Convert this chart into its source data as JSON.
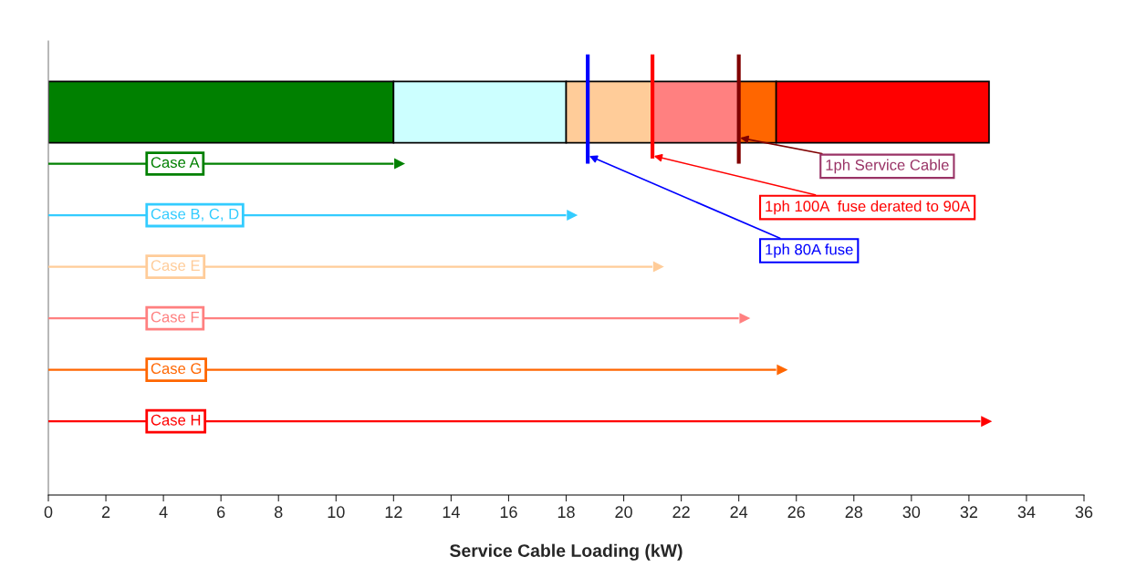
{
  "chart_data": {
    "type": "bar",
    "orientation": "horizontal",
    "stacked": true,
    "xlabel": "Service Cable Loading (kW)",
    "categories": [
      null,
      "Case A",
      "Case B, C, D",
      "Case E",
      "Case F",
      "Case G",
      "Case H"
    ],
    "series": [
      {
        "color": "#008000",
        "values": [
          12,
          null,
          null,
          null,
          null,
          null,
          null
        ]
      },
      {
        "color": "#ccffff",
        "values": [
          6,
          null,
          null,
          null,
          null,
          null,
          null
        ]
      },
      {
        "color": "#ffcc99",
        "values": [
          3,
          null,
          null,
          null,
          null,
          null,
          null
        ]
      },
      {
        "color": "#ff8080",
        "values": [
          3,
          null,
          null,
          null,
          null,
          null,
          null
        ]
      },
      {
        "color": "#ff6600",
        "values": [
          1.3,
          null,
          null,
          null,
          null,
          null,
          null
        ]
      },
      {
        "color": "#ff0000",
        "values": [
          7.4,
          null,
          null,
          null,
          null,
          null,
          null
        ]
      },
      {
        "colors": [
          null,
          "#008000",
          "#33ccff",
          "#ffcc99",
          "#ff8080",
          "#ff6600",
          "#ff0000"
        ],
        "values": [
          null,
          12,
          18,
          21,
          24,
          25.3,
          32.4
        ]
      }
    ],
    "ref_lines": [
      {
        "axis": "x",
        "value": 18.75,
        "label": "1ph 80A fuse",
        "color": "#0000ff"
      },
      {
        "axis": "x",
        "value": 21,
        "label": "1ph 100A  fuse derated to 90A",
        "color": "#ff0000"
      },
      {
        "axis": "x",
        "value": 24,
        "label": "1ph Service Cable",
        "color": "#800000"
      }
    ],
    "xlim": [
      0,
      36
    ],
    "xticks": [
      0,
      2,
      4,
      6,
      8,
      10,
      12,
      14,
      16,
      18,
      20,
      22,
      24,
      26,
      28,
      30,
      32,
      34,
      36
    ],
    "grid": false,
    "legend": false
  }
}
